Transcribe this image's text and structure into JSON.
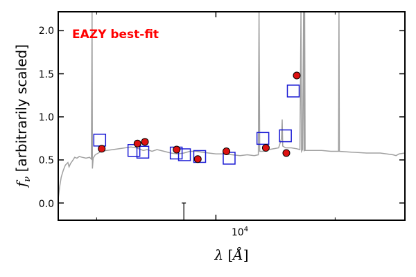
{
  "chart_data": {
    "type": "scatter",
    "x_scale": "log",
    "xlim": [
      4000,
      30000
    ],
    "ylim": [
      -0.2,
      2.22
    ],
    "ylabel": "f_ν [arbitrarily scaled]",
    "xlabel": "λ [Å]",
    "x_tick_label": "10^4",
    "x_tick_value": 10000,
    "y_ticks": [
      0.0,
      0.5,
      1.0,
      1.5,
      2.0
    ],
    "y_tick_labels": [
      "0.0",
      "0.5",
      "1.0",
      "1.5",
      "2.0"
    ],
    "annotation": "EAZY best-fit",
    "colors": {
      "model": "#a0a0a0",
      "observed_fill": "#dd1111",
      "model_photometry": "#1a1ad4",
      "annotation": "#ff0000"
    },
    "model_spectrum": {
      "points": [
        [
          4000,
          0.05
        ],
        [
          4030,
          0.18
        ],
        [
          4070,
          0.3
        ],
        [
          4120,
          0.38
        ],
        [
          4170,
          0.44
        ],
        [
          4230,
          0.47
        ],
        [
          4260,
          0.42
        ],
        [
          4300,
          0.46
        ],
        [
          4360,
          0.5
        ],
        [
          4400,
          0.53
        ],
        [
          4460,
          0.52
        ],
        [
          4520,
          0.54
        ],
        [
          4600,
          0.53
        ],
        [
          4700,
          0.52
        ],
        [
          4800,
          0.53
        ],
        [
          4850,
          0.51
        ],
        [
          4870,
          2.25
        ],
        [
          4880,
          0.4
        ],
        [
          4900,
          0.52
        ],
        [
          4960,
          0.56
        ],
        [
          5050,
          0.58
        ],
        [
          5150,
          0.6
        ],
        [
          5300,
          0.61
        ],
        [
          5500,
          0.62
        ],
        [
          5700,
          0.63
        ],
        [
          5900,
          0.64
        ],
        [
          6100,
          0.65
        ],
        [
          6300,
          0.64
        ],
        [
          6560,
          0.61
        ],
        [
          6700,
          0.62
        ],
        [
          6900,
          0.6
        ],
        [
          7100,
          0.62
        ],
        [
          7400,
          0.6
        ],
        [
          7700,
          0.58
        ],
        [
          8000,
          0.57
        ],
        [
          8300,
          0.58
        ],
        [
          8600,
          0.6
        ],
        [
          8900,
          0.6
        ],
        [
          9200,
          0.59
        ],
        [
          9600,
          0.58
        ],
        [
          10000,
          0.57
        ],
        [
          10500,
          0.57
        ],
        [
          11000,
          0.56
        ],
        [
          11500,
          0.55
        ],
        [
          12000,
          0.56
        ],
        [
          12500,
          0.55
        ],
        [
          12800,
          0.56
        ],
        [
          12850,
          2.25
        ],
        [
          12900,
          0.6
        ],
        [
          13200,
          0.6
        ],
        [
          13600,
          0.62
        ],
        [
          14000,
          0.63
        ],
        [
          14400,
          0.64
        ],
        [
          14650,
          0.75
        ],
        [
          14700,
          0.97
        ],
        [
          14750,
          0.66
        ],
        [
          15000,
          0.64
        ],
        [
          15500,
          0.64
        ],
        [
          16000,
          0.63
        ],
        [
          16300,
          0.62
        ],
        [
          16400,
          2.25
        ],
        [
          16450,
          0.6
        ],
        [
          16550,
          0.62
        ],
        [
          16650,
          2.25
        ],
        [
          16700,
          0.6
        ],
        [
          16750,
          2.25
        ],
        [
          16800,
          0.61
        ],
        [
          17500,
          0.61
        ],
        [
          18500,
          0.61
        ],
        [
          19500,
          0.6
        ],
        [
          20400,
          0.6
        ],
        [
          20450,
          2.25
        ],
        [
          20500,
          0.6
        ],
        [
          22000,
          0.59
        ],
        [
          24000,
          0.58
        ],
        [
          26000,
          0.58
        ],
        [
          28000,
          0.56
        ],
        [
          28500,
          0.55
        ],
        [
          29000,
          0.57
        ],
        [
          30000,
          0.58
        ]
      ]
    },
    "series": [
      {
        "marker": "circle",
        "points": [
          [
            5150,
            0.63
          ],
          [
            6340,
            0.69
          ],
          [
            6620,
            0.71
          ],
          [
            7960,
            0.62
          ],
          [
            9000,
            0.51
          ],
          [
            10630,
            0.6
          ],
          [
            13370,
            0.64
          ],
          [
            15060,
            0.58
          ],
          [
            16000,
            1.48
          ]
        ]
      },
      {
        "marker": "square",
        "points": [
          [
            5090,
            0.73
          ],
          [
            6210,
            0.61
          ],
          [
            6540,
            0.59
          ],
          [
            7940,
            0.58
          ],
          [
            8330,
            0.56
          ],
          [
            9100,
            0.54
          ],
          [
            10800,
            0.52
          ],
          [
            13140,
            0.75
          ],
          [
            14980,
            0.78
          ],
          [
            15680,
            1.3
          ]
        ]
      }
    ],
    "error_bar": {
      "x": 8300,
      "y_low": -0.28,
      "y_high": 0.0
    }
  }
}
